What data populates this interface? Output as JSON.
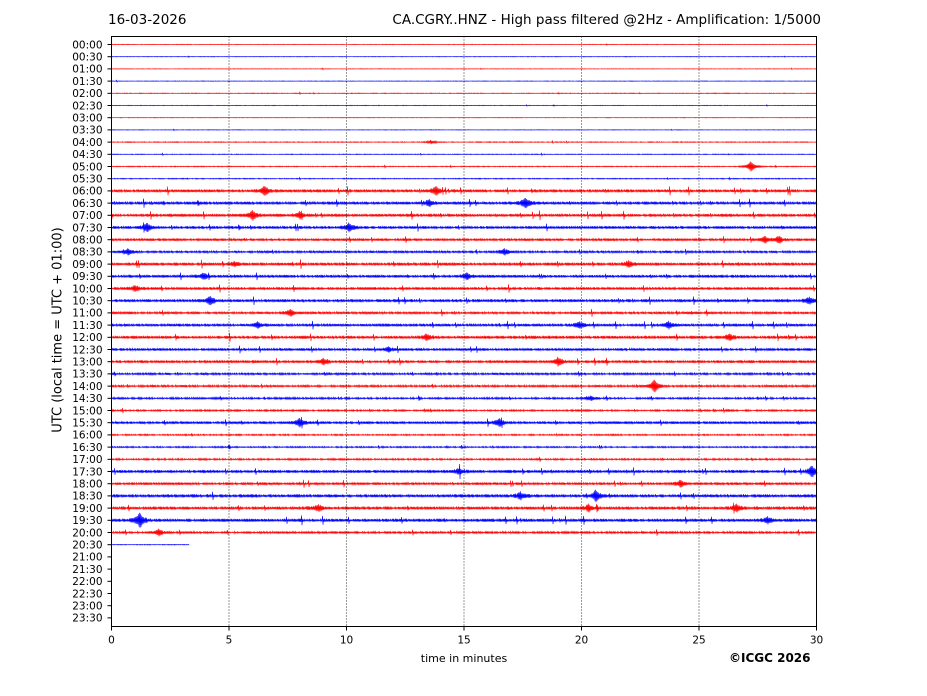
{
  "header": {
    "date": "16-03-2026",
    "title": "CA.CGRY..HNZ - High pass filtered @2Hz - Amplification: 1/5000"
  },
  "footer": {
    "copyright": "©ICGC 2026"
  },
  "chart_data": {
    "type": "line",
    "xlabel": "time in minutes",
    "ylabel": "UTC (local time = UTC + 01:00)",
    "xlim": [
      0,
      30
    ],
    "xticks": [
      0,
      5,
      10,
      15,
      20,
      25,
      30
    ],
    "grid": "vertical dotted lines at 5, 10, 15, 20, 25 minutes",
    "colors": {
      "odd_rows": "#ff0000",
      "even_rows": "#0000ff",
      "grid": "#000000"
    },
    "rows": [
      "00:00",
      "00:30",
      "01:00",
      "01:30",
      "02:00",
      "02:30",
      "03:00",
      "03:30",
      "04:00",
      "04:30",
      "05:00",
      "05:30",
      "06:00",
      "06:30",
      "07:00",
      "07:30",
      "08:00",
      "08:30",
      "09:00",
      "09:30",
      "10:00",
      "10:30",
      "11:00",
      "11:30",
      "12:00",
      "12:30",
      "13:00",
      "13:30",
      "14:00",
      "14:30",
      "15:00",
      "15:30",
      "16:00",
      "16:30",
      "17:00",
      "17:30",
      "18:00",
      "18:30",
      "19:00",
      "19:30",
      "20:00",
      "20:30",
      "21:00",
      "21:30",
      "22:00",
      "22:30",
      "23:00",
      "23:30"
    ],
    "last_trace": {
      "row": "20:30",
      "end_minute": 3.3
    },
    "noise_level": [
      0.3,
      0.3,
      0.3,
      0.3,
      0.4,
      0.3,
      0.3,
      0.3,
      0.5,
      0.4,
      0.5,
      0.5,
      1.6,
      1.6,
      1.6,
      1.5,
      1.4,
      1.2,
      1.6,
      1.5,
      1.4,
      1.6,
      1.3,
      1.5,
      1.6,
      1.4,
      1.5,
      1.1,
      1.1,
      1.0,
      0.9,
      1.4,
      0.8,
      0.8,
      0.9,
      1.6,
      1.4,
      1.7,
      1.7,
      1.7,
      1.2,
      0.4,
      0,
      0,
      0,
      0,
      0,
      0
    ],
    "events": [
      {
        "row": "04:00",
        "minute": 13.6,
        "amp": 1.5
      },
      {
        "row": "05:00",
        "minute": 27.2,
        "amp": 5
      },
      {
        "row": "06:00",
        "minute": 6.5,
        "amp": 4
      },
      {
        "row": "06:00",
        "minute": 13.8,
        "amp": 4
      },
      {
        "row": "06:30",
        "minute": 13.5,
        "amp": 3
      },
      {
        "row": "06:30",
        "minute": 17.6,
        "amp": 5
      },
      {
        "row": "07:00",
        "minute": 6.0,
        "amp": 4
      },
      {
        "row": "07:00",
        "minute": 8.0,
        "amp": 3
      },
      {
        "row": "07:30",
        "minute": 1.5,
        "amp": 4
      },
      {
        "row": "07:30",
        "minute": 10.1,
        "amp": 4
      },
      {
        "row": "08:00",
        "minute": 27.8,
        "amp": 3
      },
      {
        "row": "08:00",
        "minute": 28.4,
        "amp": 3
      },
      {
        "row": "08:30",
        "minute": 0.7,
        "amp": 3
      },
      {
        "row": "08:30",
        "minute": 16.7,
        "amp": 3
      },
      {
        "row": "09:00",
        "minute": 5.2,
        "amp": 2
      },
      {
        "row": "09:00",
        "minute": 22.0,
        "amp": 3
      },
      {
        "row": "09:30",
        "minute": 3.9,
        "amp": 3
      },
      {
        "row": "09:30",
        "minute": 15.1,
        "amp": 3
      },
      {
        "row": "10:00",
        "minute": 1.0,
        "amp": 3
      },
      {
        "row": "10:30",
        "minute": 4.2,
        "amp": 4
      },
      {
        "row": "10:30",
        "minute": 29.7,
        "amp": 3
      },
      {
        "row": "11:00",
        "minute": 7.6,
        "amp": 3
      },
      {
        "row": "11:30",
        "minute": 6.2,
        "amp": 3
      },
      {
        "row": "11:30",
        "minute": 19.9,
        "amp": 3
      },
      {
        "row": "11:30",
        "minute": 23.7,
        "amp": 3
      },
      {
        "row": "12:00",
        "minute": 13.4,
        "amp": 3
      },
      {
        "row": "12:00",
        "minute": 26.3,
        "amp": 3
      },
      {
        "row": "12:30",
        "minute": 11.8,
        "amp": 2
      },
      {
        "row": "13:00",
        "minute": 9.0,
        "amp": 3
      },
      {
        "row": "13:00",
        "minute": 19.0,
        "amp": 4
      },
      {
        "row": "14:00",
        "minute": 23.1,
        "amp": 6
      },
      {
        "row": "14:30",
        "minute": 20.4,
        "amp": 2
      },
      {
        "row": "15:30",
        "minute": 8.0,
        "amp": 4
      },
      {
        "row": "15:30",
        "minute": 16.5,
        "amp": 4
      },
      {
        "row": "17:30",
        "minute": 14.8,
        "amp": 3
      },
      {
        "row": "17:30",
        "minute": 29.8,
        "amp": 5
      },
      {
        "row": "18:00",
        "minute": 24.2,
        "amp": 3
      },
      {
        "row": "18:30",
        "minute": 20.6,
        "amp": 5
      },
      {
        "row": "18:30",
        "minute": 17.4,
        "amp": 3
      },
      {
        "row": "19:00",
        "minute": 8.8,
        "amp": 3
      },
      {
        "row": "19:00",
        "minute": 20.3,
        "amp": 3
      },
      {
        "row": "19:00",
        "minute": 26.6,
        "amp": 3
      },
      {
        "row": "19:30",
        "minute": 1.2,
        "amp": 7
      },
      {
        "row": "19:30",
        "minute": 27.9,
        "amp": 3
      },
      {
        "row": "20:00",
        "minute": 2.0,
        "amp": 3
      }
    ]
  }
}
